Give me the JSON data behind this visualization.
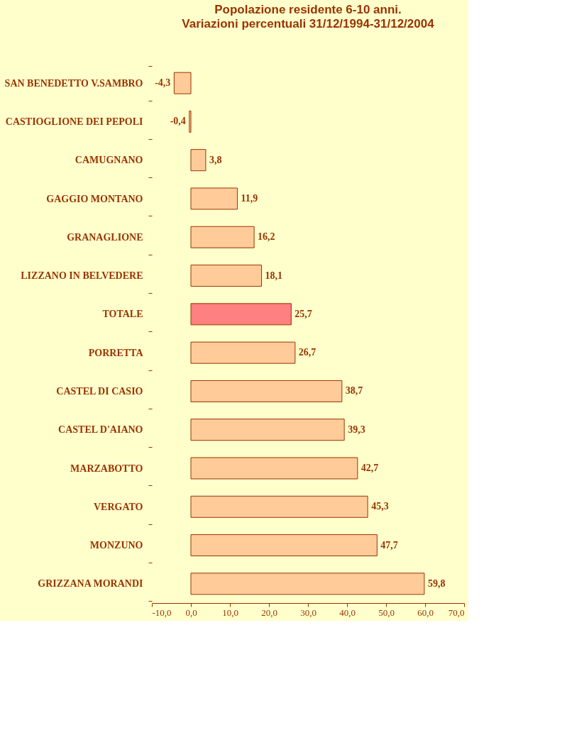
{
  "chart_data": {
    "type": "bar",
    "orientation": "horizontal",
    "title": "Popolazione residente 6-10 anni.",
    "subtitle": "Variazioni percentuali 31/12/1994-31/12/2004",
    "categories": [
      "SAN BENEDETTO V.SAMBRO",
      "CASTIOGLIONE DEI PEPOLI",
      "CAMUGNANO",
      "GAGGIO MONTANO",
      "GRANAGLIONE",
      "LIZZANO IN BELVEDERE",
      "TOTALE",
      "PORRETTA",
      "CASTEL DI CASIO",
      "CASTEL D'AIANO",
      "MARZABOTTO",
      "VERGATO",
      "MONZUNO",
      "GRIZZANA MORANDI"
    ],
    "values": [
      -4.3,
      -0.4,
      3.8,
      11.9,
      16.2,
      18.1,
      25.7,
      26.7,
      38.7,
      39.3,
      42.7,
      45.3,
      47.7,
      59.8
    ],
    "value_labels": [
      "-4,3",
      "-0,4",
      "3,8",
      "11,9",
      "16,2",
      "18,1",
      "25,7",
      "26,7",
      "38,7",
      "39,3",
      "42,7",
      "45,3",
      "47,7",
      "59,8"
    ],
    "colors": [
      "#ffcc99",
      "#ffcc99",
      "#ffcc99",
      "#ffcc99",
      "#ffcc99",
      "#ffcc99",
      "#ff8080",
      "#ffcc99",
      "#ffcc99",
      "#ffcc99",
      "#ffcc99",
      "#ffcc99",
      "#ffcc99",
      "#ffcc99"
    ],
    "xlim": [
      -10,
      70
    ],
    "xticks": [
      {
        "value": -10,
        "label": "-10,0"
      },
      {
        "value": 0,
        "label": "0,0"
      },
      {
        "value": 10,
        "label": "10,0"
      },
      {
        "value": 20,
        "label": "20,0"
      },
      {
        "value": 30,
        "label": "30,0"
      },
      {
        "value": 40,
        "label": "40,0"
      },
      {
        "value": 50,
        "label": "50,0"
      },
      {
        "value": 60,
        "label": "60,0"
      },
      {
        "value": 70,
        "label": "70,0"
      }
    ],
    "grid": false
  }
}
